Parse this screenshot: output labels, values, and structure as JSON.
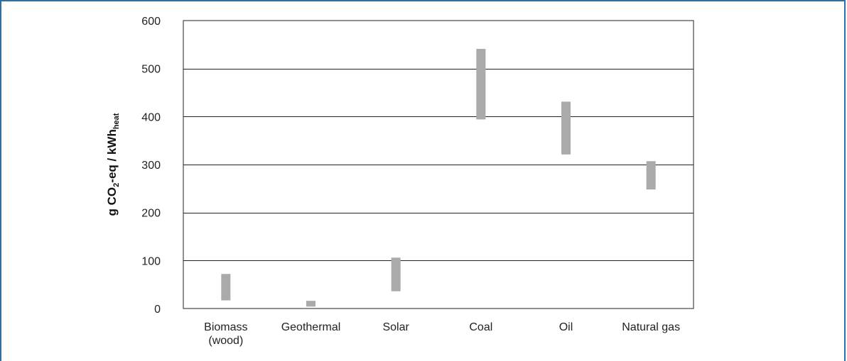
{
  "chart_data": {
    "type": "bar",
    "subtype": "floating-range",
    "ylabel": {
      "prefix": "g CO",
      "sub1": "2",
      "middle": "-eq / kWh",
      "sub2": "heat"
    },
    "ylim": [
      0,
      600
    ],
    "yticks": [
      "0",
      "100",
      "200",
      "300",
      "400",
      "500",
      "600"
    ],
    "categories": [
      [
        "Biomass",
        "(wood)"
      ],
      [
        "Geothermal"
      ],
      [
        "Solar"
      ],
      [
        "Coal"
      ],
      [
        "Oil"
      ],
      [
        "Natural gas"
      ]
    ],
    "ranges": [
      [
        17,
        72
      ],
      [
        4,
        16
      ],
      [
        36,
        106
      ],
      [
        394,
        541
      ],
      [
        321,
        431
      ],
      [
        248,
        307
      ]
    ],
    "grid": true,
    "legend": "none",
    "colors": {
      "bar": "#aaaaaa",
      "grid": "#222222",
      "frame": "#2f6fa4"
    }
  }
}
